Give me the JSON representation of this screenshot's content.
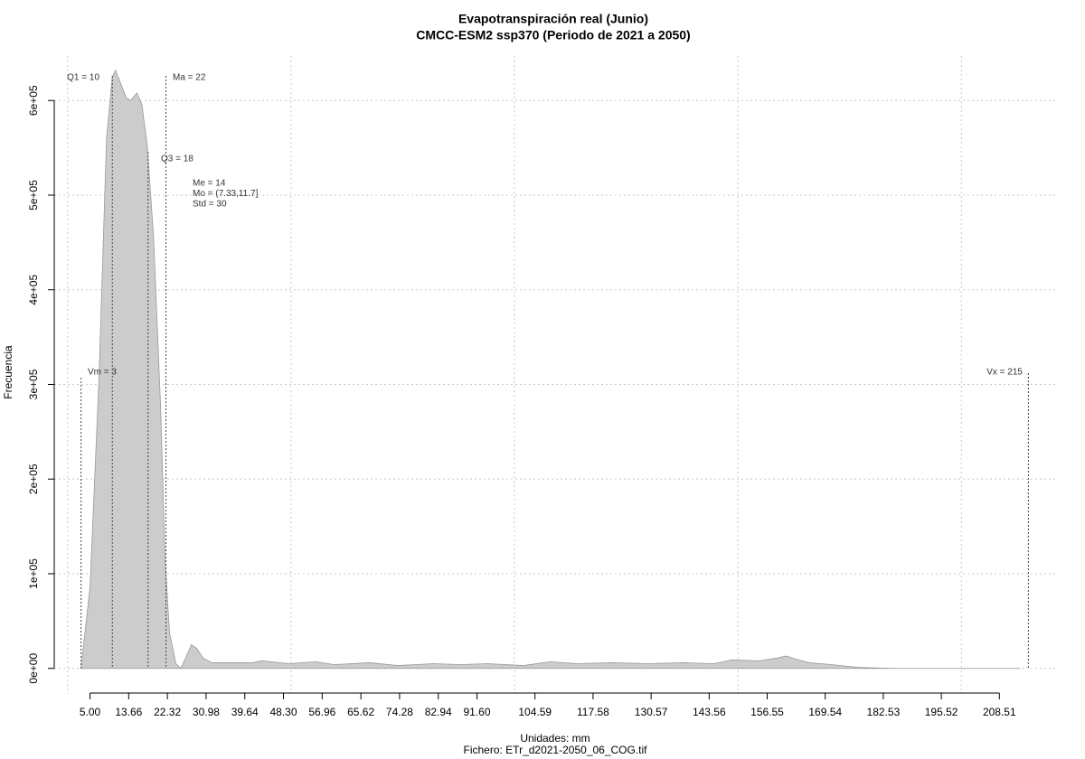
{
  "chart_data": {
    "type": "area",
    "title": "Evapotranspiración real (Junio)",
    "subtitle": "CMCC-ESM2 ssp370 (Periodo de 2021 a 2050)",
    "x_label": "Unidades: mm",
    "y_label": "Frecuencia",
    "caption": "Fichero: ETr_d2021-2050_06_COG.tif",
    "x": [
      3,
      5,
      7,
      8.7,
      10,
      10.7,
      11.7,
      13.1,
      14.1,
      15.5,
      16.6,
      17.8,
      19.2,
      20.8,
      21.8,
      22.8,
      24.2,
      25.3,
      26.3,
      27.7,
      28.9,
      30.3,
      32.3,
      41.4,
      43.5,
      49.5,
      55.6,
      59.6,
      67.7,
      73.8,
      81.9,
      88,
      94,
      102,
      108,
      114,
      122,
      130,
      138,
      144.6,
      148.7,
      154.7,
      158.8,
      160.8,
      162.8,
      165.9,
      170.9,
      177,
      185,
      213
    ],
    "series": [
      {
        "color": "#cccccc",
        "values": [
          0,
          86000,
          305000,
          560000,
          625000,
          632000,
          620000,
          603000,
          600000,
          608000,
          596000,
          553000,
          458000,
          277000,
          115000,
          38000,
          5000,
          0,
          10000,
          25000,
          21000,
          11000,
          6000,
          6000,
          8000,
          5000,
          7000,
          4000,
          6000,
          3000,
          5000,
          4000,
          5000,
          3000,
          7000,
          5000,
          6000,
          5000,
          6000,
          5000,
          9000,
          8000,
          11000,
          13000,
          10000,
          6000,
          4000,
          1000,
          0,
          0
        ]
      }
    ],
    "xlim": [
      -3,
      221.6
    ],
    "ylim": [
      -27000,
      647000
    ],
    "xticks": [
      {
        "value": 5,
        "label": "5.00"
      },
      {
        "value": 13.66,
        "label": "13.66"
      },
      {
        "value": 22.32,
        "label": "22.32"
      },
      {
        "value": 30.98,
        "label": "30.98"
      },
      {
        "value": 39.64,
        "label": "39.64"
      },
      {
        "value": 48.3,
        "label": "48.30"
      },
      {
        "value": 56.96,
        "label": "56.96"
      },
      {
        "value": 65.62,
        "label": "65.62"
      },
      {
        "value": 74.28,
        "label": "74.28"
      },
      {
        "value": 82.94,
        "label": "82.94"
      },
      {
        "value": 91.6,
        "label": "91.60"
      },
      {
        "value": 104.59,
        "label": "104.59"
      },
      {
        "value": 117.58,
        "label": "117.58"
      },
      {
        "value": 130.57,
        "label": "130.57"
      },
      {
        "value": 143.56,
        "label": "143.56"
      },
      {
        "value": 156.55,
        "label": "156.55"
      },
      {
        "value": 169.54,
        "label": "169.54"
      },
      {
        "value": 182.53,
        "label": "182.53"
      },
      {
        "value": 195.52,
        "label": "195.52"
      },
      {
        "value": 208.51,
        "label": "208.51"
      }
    ],
    "yticks": [
      {
        "value": 0,
        "label": "0e+00"
      },
      {
        "value": 100000,
        "label": "1e+05"
      },
      {
        "value": 200000,
        "label": "2e+05"
      },
      {
        "value": 300000,
        "label": "3e+05"
      },
      {
        "value": 400000,
        "label": "4e+05"
      },
      {
        "value": 500000,
        "label": "5e+05"
      },
      {
        "value": 600000,
        "label": "6e+05"
      }
    ],
    "x_gridlines": [
      0,
      50,
      100,
      150,
      200
    ],
    "grid": true,
    "markers": [
      {
        "label": "Vm = 3",
        "x": 3
      },
      {
        "label": "Q1 = 10",
        "x": 10
      },
      {
        "label": "Q3 = 18",
        "x": 18
      },
      {
        "label": "Ma = 22",
        "x": 22
      },
      {
        "label": "Vx = 215",
        "x": 215
      }
    ],
    "stats": [
      "Me = 14",
      "Mo = (7.33,11.7]",
      "Std = 30"
    ]
  }
}
